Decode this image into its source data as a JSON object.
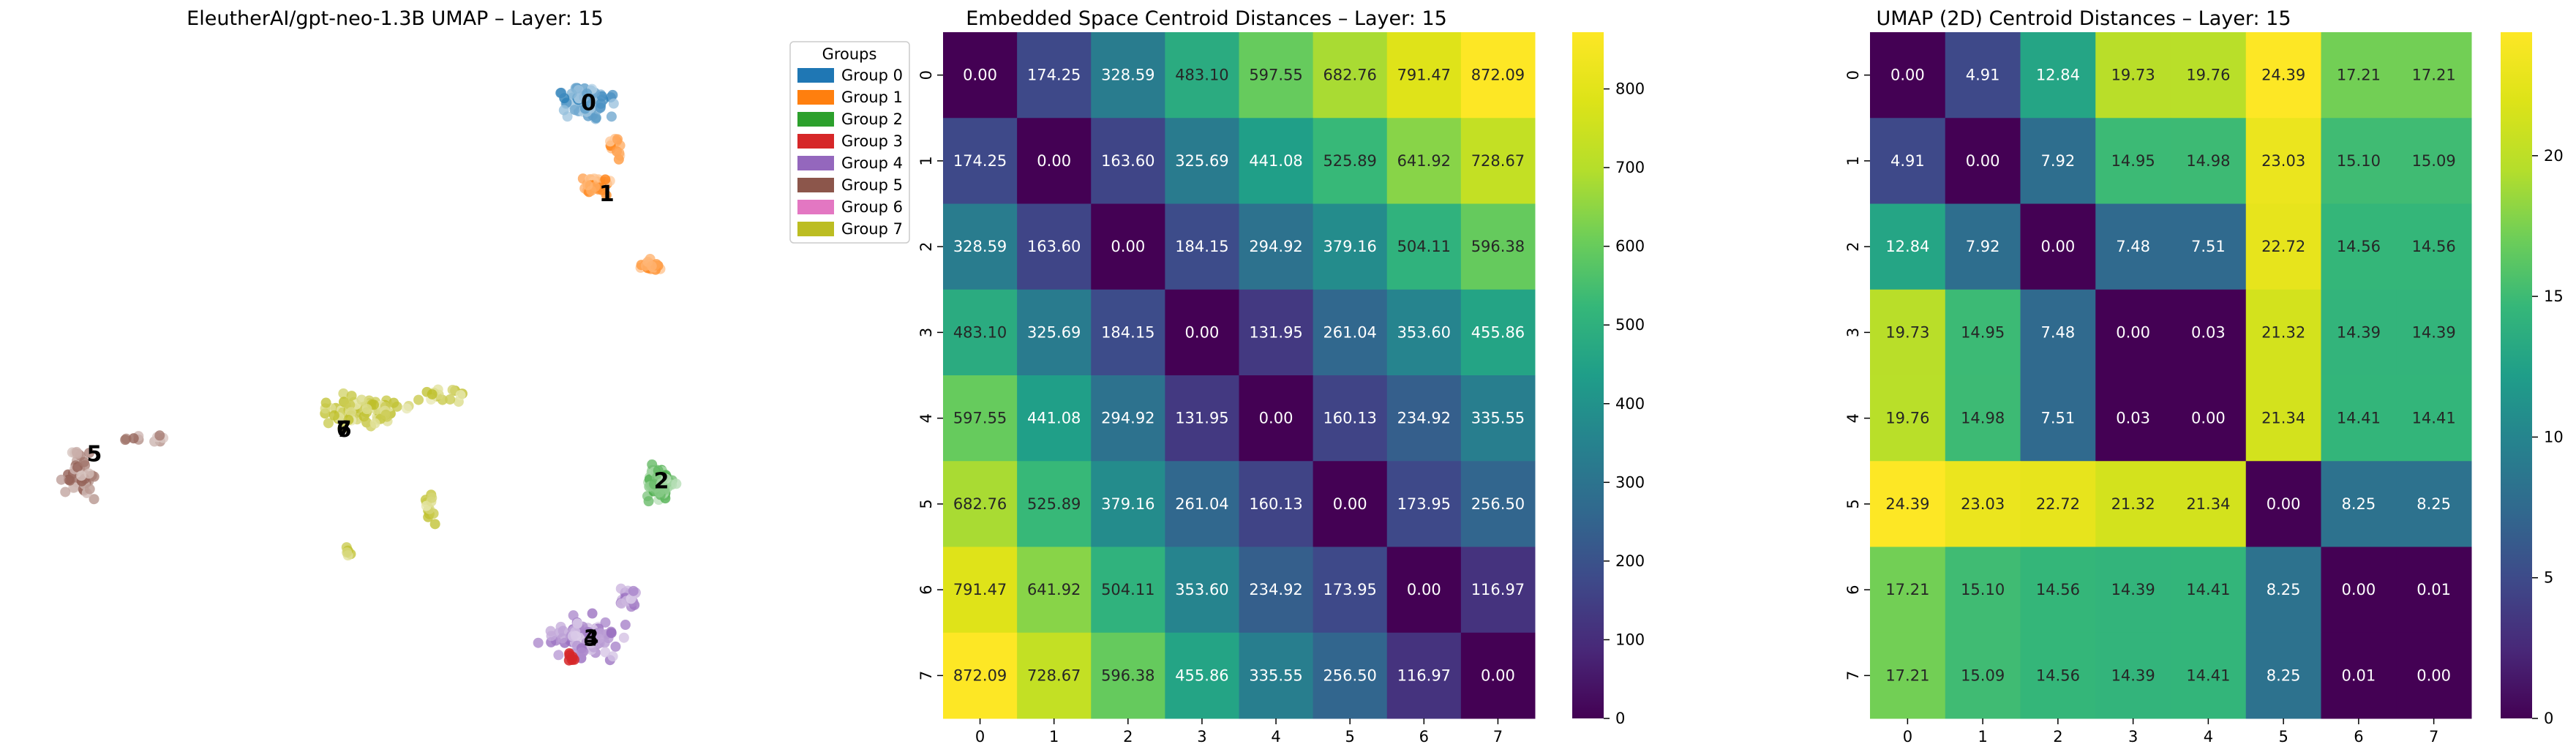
{
  "chart_data": [
    {
      "type": "scatter",
      "title": "EleutherAI/gpt-neo-1.3B UMAP – Layer: 15",
      "legend": {
        "title": "Groups",
        "placement": "upper-right outside plot",
        "entries": [
          "Group 0",
          "Group 1",
          "Group 2",
          "Group 3",
          "Group 4",
          "Group 5",
          "Group 6",
          "Group 7"
        ]
      },
      "colors": [
        "#1f77b4",
        "#ff7f0e",
        "#2ca02c",
        "#d62728",
        "#9467bd",
        "#8c564b",
        "#e377c2",
        "#bcbd22"
      ],
      "axes": "off",
      "centroids": [
        {
          "label": "0",
          "x": 4.5,
          "y": 18.6
        },
        {
          "label": "1",
          "x": 5.2,
          "y": 14.9
        },
        {
          "label": "2",
          "x": 7.3,
          "y": 3.2
        },
        {
          "label": "3",
          "x": 4.6,
          "y": -3.2
        },
        {
          "label": "4",
          "x": 4.6,
          "y": -3.2
        },
        {
          "label": "5",
          "x": -14.5,
          "y": 4.3
        },
        {
          "label": "6",
          "x": -4.9,
          "y": 5.3
        },
        {
          "label": "7",
          "x": -4.9,
          "y": 5.3
        }
      ]
    },
    {
      "type": "heatmap",
      "title": "Embedded Space Centroid Distances – Layer: 15",
      "x_ticks": [
        "0",
        "1",
        "2",
        "3",
        "4",
        "5",
        "6",
        "7"
      ],
      "y_ticks": [
        "0",
        "1",
        "2",
        "3",
        "4",
        "5",
        "6",
        "7"
      ],
      "matrix": [
        [
          0.0,
          174.25,
          328.59,
          483.1,
          597.55,
          682.76,
          791.47,
          872.09
        ],
        [
          174.25,
          0.0,
          163.6,
          325.69,
          441.08,
          525.89,
          641.92,
          728.67
        ],
        [
          328.59,
          163.6,
          0.0,
          184.15,
          294.92,
          379.16,
          504.11,
          596.38
        ],
        [
          483.1,
          325.69,
          184.15,
          0.0,
          131.95,
          261.04,
          353.6,
          455.86
        ],
        [
          597.55,
          441.08,
          294.92,
          131.95,
          0.0,
          160.13,
          234.92,
          335.55
        ],
        [
          682.76,
          525.89,
          379.16,
          261.04,
          160.13,
          0.0,
          173.95,
          256.5
        ],
        [
          791.47,
          641.92,
          504.11,
          353.6,
          234.92,
          173.95,
          0.0,
          116.97
        ],
        [
          872.09,
          728.67,
          596.38,
          455.86,
          335.55,
          256.5,
          116.97,
          0.0
        ]
      ],
      "colormap": "viridis",
      "vmin": 0,
      "vmax": 872.09,
      "colorbar_ticks": [
        0,
        100,
        200,
        300,
        400,
        500,
        600,
        700,
        800
      ]
    },
    {
      "type": "heatmap",
      "title": "UMAP (2D) Centroid Distances – Layer: 15",
      "x_ticks": [
        "0",
        "1",
        "2",
        "3",
        "4",
        "5",
        "6",
        "7"
      ],
      "y_ticks": [
        "0",
        "1",
        "2",
        "3",
        "4",
        "5",
        "6",
        "7"
      ],
      "matrix": [
        [
          0.0,
          4.91,
          12.84,
          19.73,
          19.76,
          24.39,
          17.21,
          17.21
        ],
        [
          4.91,
          0.0,
          7.92,
          14.95,
          14.98,
          23.03,
          15.1,
          15.09
        ],
        [
          12.84,
          7.92,
          0.0,
          7.48,
          7.51,
          22.72,
          14.56,
          14.56
        ],
        [
          19.73,
          14.95,
          7.48,
          0.0,
          0.03,
          21.32,
          14.39,
          14.39
        ],
        [
          19.76,
          14.98,
          7.51,
          0.03,
          0.0,
          21.34,
          14.41,
          14.41
        ],
        [
          24.39,
          23.03,
          22.72,
          21.32,
          21.34,
          0.0,
          8.25,
          8.25
        ],
        [
          17.21,
          15.1,
          14.56,
          14.39,
          14.41,
          8.25,
          0.0,
          0.01
        ],
        [
          17.21,
          15.09,
          14.56,
          14.39,
          14.41,
          8.25,
          0.01,
          0.0
        ]
      ],
      "colormap": "viridis",
      "vmin": 0,
      "vmax": 24.39,
      "colorbar_ticks": [
        0,
        5,
        10,
        15,
        20
      ]
    }
  ]
}
